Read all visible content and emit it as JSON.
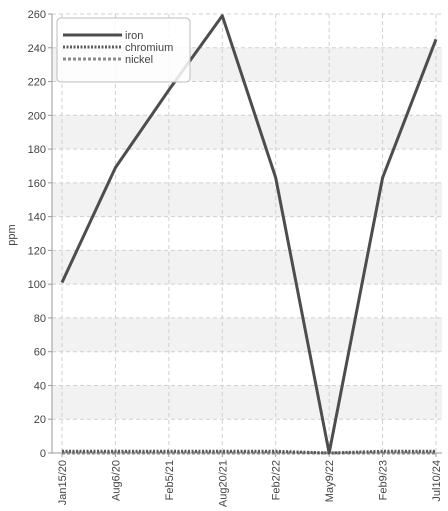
{
  "chart_data": {
    "type": "line",
    "title": "",
    "xlabel": "",
    "ylabel": "ppm",
    "categories": [
      "Jan15/20",
      "Aug6/20",
      "Feb5/21",
      "Aug20/21",
      "Feb2/22",
      "May9/22",
      "Feb9/23",
      "Jul10/24"
    ],
    "ylim": [
      0,
      260
    ],
    "yticks": [
      0,
      20,
      40,
      60,
      80,
      100,
      120,
      140,
      160,
      180,
      200,
      220,
      240,
      260
    ],
    "grid": true,
    "legend_position": "top-left",
    "series": [
      {
        "name": "iron",
        "color": "#4d4d4d",
        "style": "solid",
        "values": [
          101,
          169,
          215,
          259,
          163,
          0,
          163,
          245
        ]
      },
      {
        "name": "chromium",
        "color": "#5a5a5a",
        "style": "dotted",
        "values": [
          1,
          1,
          1,
          1,
          1,
          0,
          1,
          1
        ]
      },
      {
        "name": "nickel",
        "color": "#8a8a8a",
        "style": "dashed",
        "values": [
          0,
          0,
          0,
          0,
          0,
          0,
          0,
          0
        ]
      }
    ]
  }
}
